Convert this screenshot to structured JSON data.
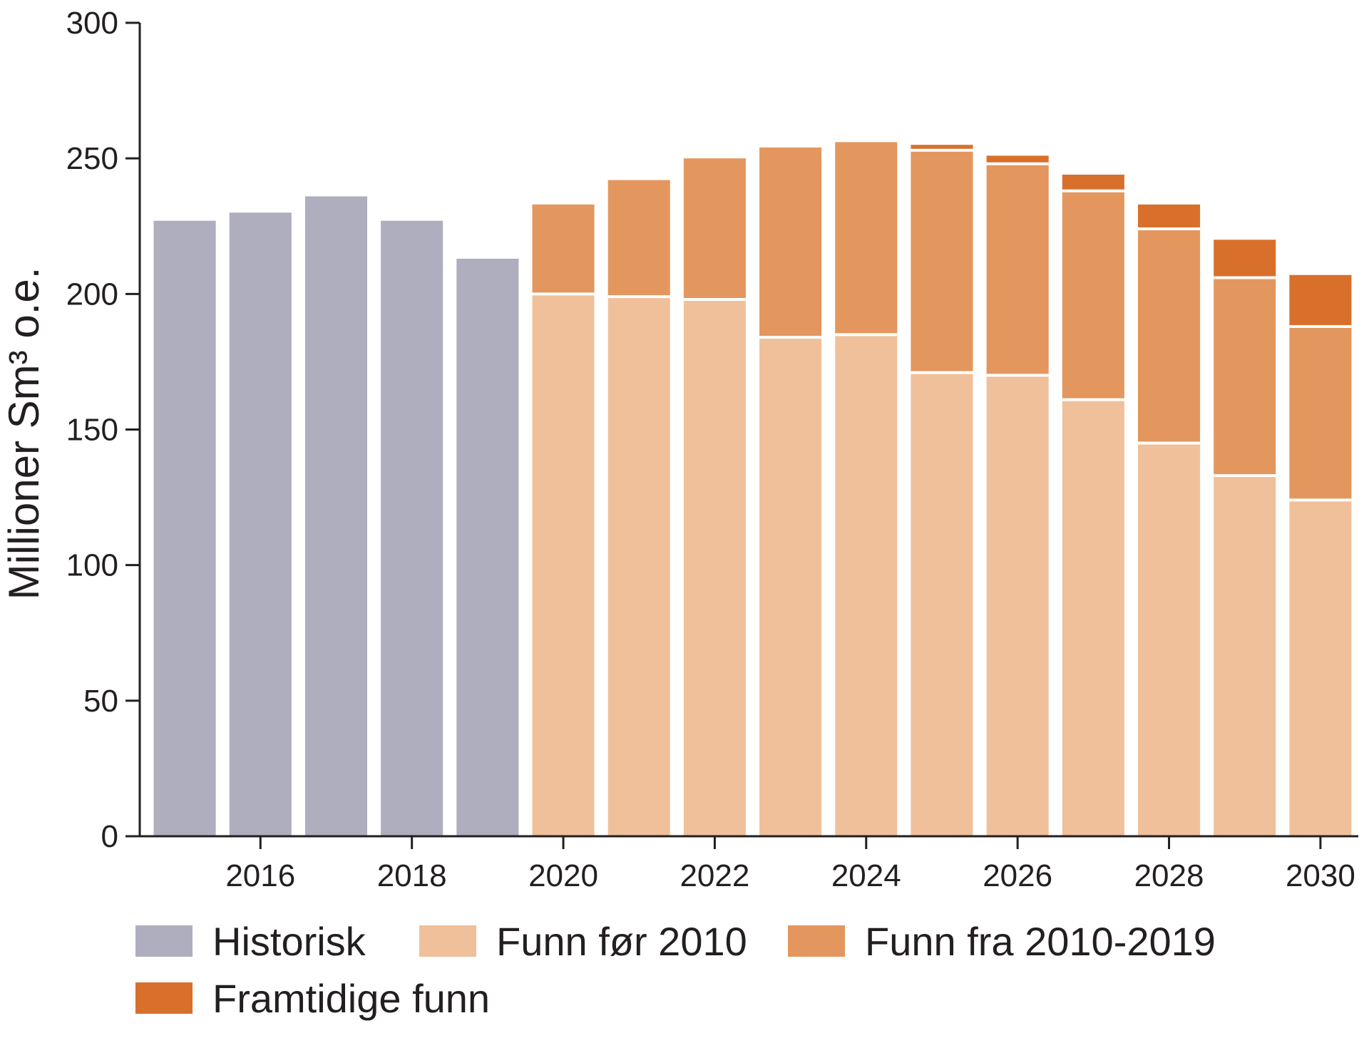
{
  "chart_data": {
    "type": "bar",
    "stacked": true,
    "title": "",
    "xlabel": "",
    "ylabel": "Millioner Sm³ o.e.",
    "ylim": [
      0,
      300
    ],
    "yticks": [
      0,
      50,
      100,
      150,
      200,
      250,
      300
    ],
    "categories": [
      2015,
      2016,
      2017,
      2018,
      2019,
      2020,
      2021,
      2022,
      2023,
      2024,
      2025,
      2026,
      2027,
      2028,
      2029,
      2030
    ],
    "xtick_labels": [
      "2016",
      "2018",
      "2020",
      "2022",
      "2024",
      "2026",
      "2028",
      "2030"
    ],
    "xtick_values": [
      2016,
      2018,
      2020,
      2022,
      2024,
      2026,
      2028,
      2030
    ],
    "grid": false,
    "legend_position": "bottom",
    "series": [
      {
        "name": "Historisk",
        "color": "#afaebe",
        "values": [
          227,
          230,
          236,
          227,
          213,
          0,
          0,
          0,
          0,
          0,
          0,
          0,
          0,
          0,
          0,
          0
        ]
      },
      {
        "name": "Funn før 2010",
        "color": "#f0c09a",
        "values": [
          0,
          0,
          0,
          0,
          0,
          200,
          199,
          198,
          184,
          185,
          171,
          170,
          161,
          145,
          133,
          124
        ]
      },
      {
        "name": "Funn fra 2010-2019",
        "color": "#e3975e",
        "values": [
          0,
          0,
          0,
          0,
          0,
          33,
          43,
          52,
          70,
          71,
          82,
          78,
          77,
          79,
          73,
          64
        ]
      },
      {
        "name": "Framtidige funn",
        "color": "#d8702c",
        "values": [
          0,
          0,
          0,
          0,
          0,
          0,
          0,
          0,
          0,
          0,
          2,
          3,
          6,
          9,
          14,
          19
        ]
      }
    ]
  }
}
